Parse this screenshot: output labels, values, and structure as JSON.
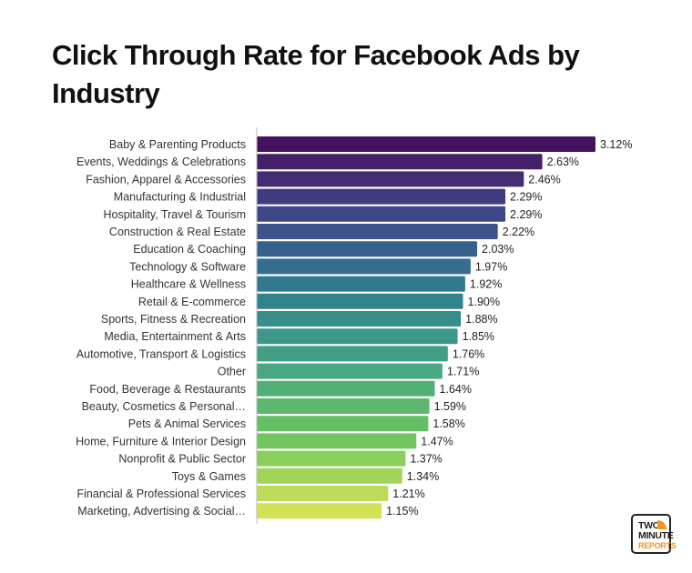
{
  "title": "Click Through Rate for Facebook Ads by Industry",
  "logo": {
    "line1": "TWO",
    "line2": "MINUTE",
    "line3": "REPORTS",
    "accent": "#f7931e"
  },
  "chart_data": {
    "type": "bar",
    "orientation": "horizontal",
    "title": "Click Through Rate for Facebook Ads by Industry",
    "xlabel": "",
    "ylabel": "",
    "xlim": [
      0,
      3.12
    ],
    "grid": false,
    "value_suffix": "%",
    "color_gradient": [
      "#44135f",
      "#3f4a8a",
      "#2f7e8e",
      "#45a583",
      "#6cc65e",
      "#d4e157"
    ],
    "categories": [
      "Baby & Parenting Products",
      "Events, Weddings & Celebrations",
      "Fashion, Apparel & Accessories",
      "Manufacturing & Industrial",
      "Hospitality, Travel & Tourism",
      "Construction & Real Estate",
      "Education & Coaching",
      "Technology & Software",
      "Healthcare & Wellness",
      "Retail & E-commerce",
      "Sports, Fitness & Recreation",
      "Media, Entertainment & Arts",
      "Automotive, Transport & Logistics",
      "Other",
      "Food, Beverage & Restaurants",
      "Beauty, Cosmetics & Personal…",
      "Pets & Animal Services",
      "Home, Furniture & Interior Design",
      "Nonprofit & Public Sector",
      "Toys & Games",
      "Financial & Professional Services",
      "Marketing, Advertising & Social…"
    ],
    "values": [
      3.12,
      2.63,
      2.46,
      2.29,
      2.29,
      2.22,
      2.03,
      1.97,
      1.92,
      1.9,
      1.88,
      1.85,
      1.76,
      1.71,
      1.64,
      1.59,
      1.58,
      1.47,
      1.37,
      1.34,
      1.21,
      1.15
    ],
    "labels": [
      "3.12%",
      "2.63%",
      "2.46%",
      "2.29%",
      "2.29%",
      "2.22%",
      "2.03%",
      "1.97%",
      "1.92%",
      "1.90%",
      "1.88%",
      "1.85%",
      "1.76%",
      "1.71%",
      "1.64%",
      "1.59%",
      "1.58%",
      "1.47%",
      "1.37%",
      "1.34%",
      "1.21%",
      "1.15%"
    ]
  }
}
